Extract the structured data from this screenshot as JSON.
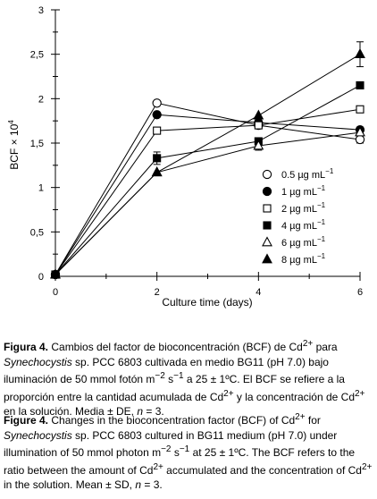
{
  "chart_data": {
    "type": "line",
    "ylabel": "BCF × 10",
    "ylabel_exp": "4",
    "xlabel": "Culture time (days)",
    "x": [
      0,
      2,
      4,
      6
    ],
    "xticks": [
      "0",
      "2",
      "4",
      "6"
    ],
    "yticks": [
      "0",
      "0,5",
      "1",
      "1,5",
      "2",
      "2,5",
      "3"
    ],
    "xlim": [
      0,
      6
    ],
    "ylim": [
      0,
      3
    ],
    "grid": false,
    "legend_placement": "right-middle",
    "series": [
      {
        "name": "0.5 µg mL",
        "sup": "−1",
        "marker": "circle-open",
        "values": [
          0.02,
          1.95,
          1.7,
          1.54
        ],
        "err": [
          0,
          0,
          0,
          0.04
        ]
      },
      {
        "name": "1 µg mL",
        "sup": "−1",
        "marker": "circle-filled",
        "values": [
          0.02,
          1.82,
          1.73,
          1.65
        ],
        "err": [
          0,
          0,
          0,
          0
        ]
      },
      {
        "name": "2 µg mL",
        "sup": "−1",
        "marker": "square-open",
        "values": [
          0.02,
          1.64,
          1.7,
          1.88
        ],
        "err": [
          0,
          0,
          0,
          0
        ]
      },
      {
        "name": "4 µg mL",
        "sup": "−1",
        "marker": "square-filled",
        "values": [
          0.02,
          1.33,
          1.52,
          2.15
        ],
        "err": [
          0,
          0.07,
          0.04,
          0
        ]
      },
      {
        "name": "6 µg mL",
        "sup": "−1",
        "marker": "triangle-open",
        "values": [
          0.02,
          1.17,
          1.47,
          1.62
        ],
        "err": [
          0,
          0,
          0.05,
          0.06
        ]
      },
      {
        "name": "8 µg mL",
        "sup": "−1",
        "marker": "triangle-filled",
        "values": [
          0.02,
          1.17,
          1.81,
          2.5
        ],
        "err": [
          0,
          0,
          0,
          0.14
        ]
      }
    ]
  },
  "caption_es": {
    "label": "Figura 4.",
    "p1": " Cambios del factor de bioconcentración (BCF) de Cd",
    "s1": "2+",
    "p2": " para ",
    "i1": "Synechocystis",
    "p3": " sp. PCC 6803 cultivada en medio BG11 (pH 7.0) bajo iluminación de 50 mmol fotón m",
    "s2": "−2",
    "p4": " s",
    "s3": "−1",
    "p5": " a 25 ± 1ºC. El BCF se refiere a la proporción entre la cantidad acumulada de Cd",
    "s4": "2+",
    "p6": " y la concentración de Cd",
    "s5": "2+",
    "p7": " en la solución. Media ± DE, ",
    "i2": "n",
    "p8": " = 3."
  },
  "caption_en": {
    "label": "Figure 4.",
    "p1": " Changes in the bioconcentration factor (BCF) of Cd",
    "s1": "2+",
    "p2": " for ",
    "i1": "Synechocystis",
    "p3": " sp. PCC 6803 cultured in BG11 medium (pH 7.0) under illumination of 50 mmol photon m",
    "s2": "−2",
    "p4": " s",
    "s3": "−1",
    "p5": " at 25 ± 1ºC. The BCF refers to the ratio between the amount of Cd",
    "s4": "2+",
    "p6": " accumulated and the concentration of Cd",
    "s5": "2+",
    "p7": " in the solution. Mean ± SD, ",
    "i2": "n",
    "p8": " = 3."
  }
}
